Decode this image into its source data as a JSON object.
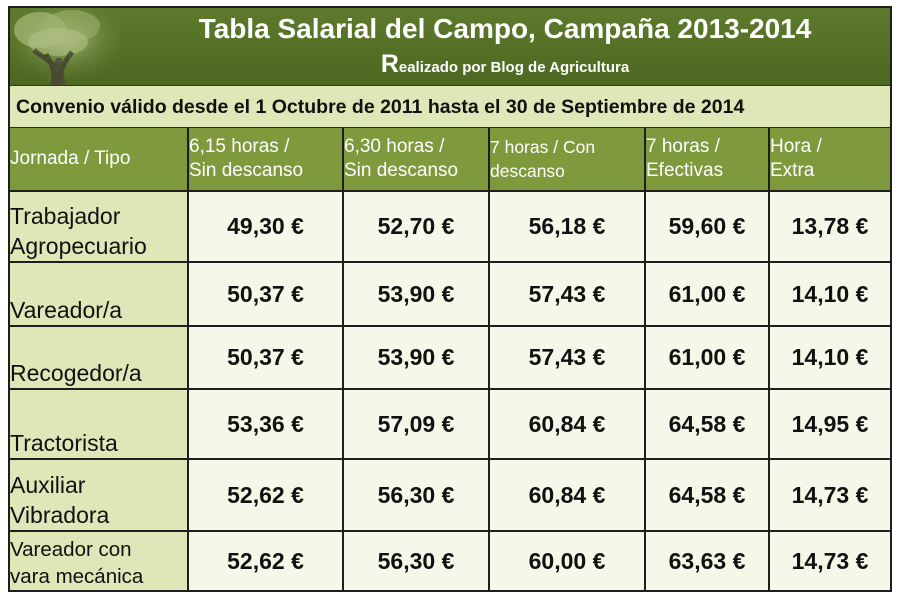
{
  "title": "Tabla Salarial del Campo, Campaña 2013-2014",
  "subtitle": {
    "initial": "R",
    "rest": "ealizado por Blog de Agricultura"
  },
  "banner": "Convenio válido desde el 1 Octubre de 2011 hasta el 30 de Septiembre de 2014",
  "header": {
    "c0": "Jornada / Tipo",
    "c1a": "6,15 horas /",
    "c1b": "Sin descanso",
    "c2a": "6,30 horas /",
    "c2b": "Sin descanso",
    "c3a": "7 horas / Con",
    "c3b": "descanso",
    "c4a": "7 horas /",
    "c4b": "Efectivas",
    "c5a": "Hora /",
    "c5b": "Extra"
  },
  "rows": [
    {
      "a": "Trabajador",
      "b": "Agropecuario",
      "v": [
        "49,30 €",
        "52,70 €",
        "56,18 €",
        "59,60 €",
        "13,78 €"
      ]
    },
    {
      "a": "",
      "b": "Vareador/a",
      "v": [
        "50,37 €",
        "53,90 €",
        "57,43 €",
        "61,00 €",
        "14,10 €"
      ]
    },
    {
      "a": "",
      "b": "Recogedor/a",
      "v": [
        "50,37 €",
        "53,90 €",
        "57,43 €",
        "61,00 €",
        "14,10 €"
      ]
    },
    {
      "a": "",
      "b": "Tractorista",
      "v": [
        "53,36 €",
        "57,09 €",
        "60,84 €",
        "64,58 €",
        "14,95 €"
      ]
    },
    {
      "a": "Auxiliar",
      "b": "Vibradora",
      "v": [
        "52,62 €",
        "56,30 €",
        "60,84 €",
        "64,58 €",
        "14,73 €"
      ]
    },
    {
      "a": "Vareador con",
      "b": "vara mecánica",
      "v": [
        "52,62 €",
        "56,30 €",
        "60,00 €",
        "63,63 €",
        "14,73 €"
      ]
    }
  ],
  "colors": {
    "header_bar": "#5d7a2c",
    "column_header": "#7e9a3c",
    "label_cells": "#dde7b8",
    "value_cells": "#f6f7e8",
    "border": "#1e1e1e"
  },
  "icons": {
    "header_image": "olive-tree-icon"
  }
}
